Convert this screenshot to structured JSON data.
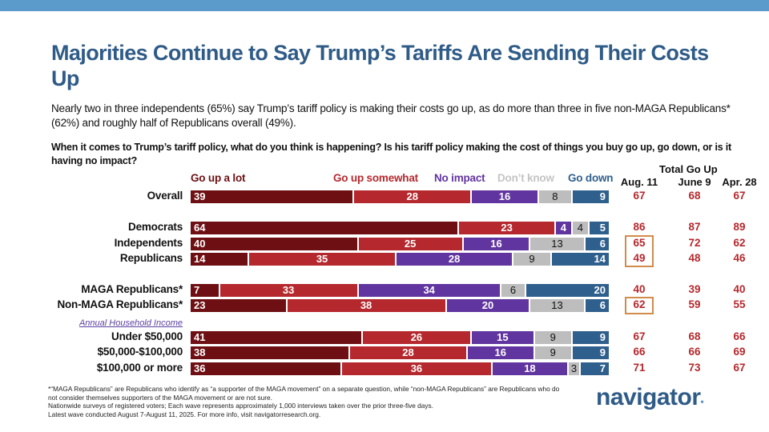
{
  "header": {
    "title": "Majorities Continue to Say Trump’s Tariffs Are Sending Their Costs Up",
    "subtitle": "Nearly two in three independents (65%) say Trump’s tariff policy is making their costs go up, as do more than three in five non-MAGA Republicans* (62%) and roughly half of Republicans overall (49%).",
    "question": "When it comes to Trump’s tariff policy, what do you think is happening? Is his tariff policy making the cost of things you buy go up, go down, or is it having no impact?"
  },
  "colors": {
    "go_up_a_lot": "#6e1013",
    "go_up_somewhat": "#b5292e",
    "no_impact": "#6135a0",
    "dont_know": "#bdbdbd",
    "go_down": "#2f5f8c",
    "title": "#2f5b87",
    "highlight_box": "#d18b4b",
    "topbar": "#5b9bcc"
  },
  "chart_data": {
    "type": "bar",
    "orientation": "horizontal-stacked",
    "title": "When it comes to Trump’s tariff policy, what do you think is happening?",
    "series_names": [
      "Go up a lot",
      "Go up somewhat",
      "No impact",
      "Don’t know",
      "Go down"
    ],
    "categories": [
      "Overall",
      "Democrats",
      "Independents",
      "Republicans",
      "MAGA Republicans*",
      "Non-MAGA Republicans*",
      "Under $50,000",
      "$50,000-$100,000",
      "$100,000 or more"
    ],
    "series": [
      {
        "name": "Go up a lot",
        "values": [
          39,
          64,
          40,
          14,
          7,
          23,
          41,
          38,
          36
        ]
      },
      {
        "name": "Go up somewhat",
        "values": [
          28,
          23,
          25,
          35,
          33,
          38,
          26,
          28,
          36
        ]
      },
      {
        "name": "No impact",
        "values": [
          16,
          4,
          16,
          28,
          34,
          20,
          15,
          16,
          18
        ]
      },
      {
        "name": "Don’t know",
        "values": [
          8,
          4,
          13,
          9,
          6,
          13,
          9,
          9,
          3
        ]
      },
      {
        "name": "Go down",
        "values": [
          9,
          5,
          6,
          14,
          20,
          6,
          9,
          9,
          7
        ]
      }
    ],
    "section_label": "Annual Household Income",
    "total_go_up": {
      "header": "Total Go Up",
      "columns": [
        "Aug. 11",
        "June 9",
        "Apr. 28"
      ],
      "values": [
        [
          67,
          68,
          67
        ],
        [
          86,
          87,
          89
        ],
        [
          65,
          72,
          62
        ],
        [
          49,
          48,
          46
        ],
        [
          40,
          39,
          40
        ],
        [
          62,
          59,
          55
        ],
        [
          67,
          68,
          66
        ],
        [
          66,
          66,
          69
        ],
        [
          71,
          73,
          67
        ]
      ],
      "highlighted": [
        "Independents Aug. 11",
        "Republicans Aug. 11",
        "Non-MAGA Republicans* Aug. 11"
      ]
    },
    "xlim": [
      0,
      100
    ],
    "grid": false,
    "legend": "top"
  },
  "footnote": {
    "line1": "*“MAGA Republicans” are Republicans who identify as “a supporter of the MAGA movement” on a separate question, while “non-MAGA Republicans” are Republicans who do not consider themselves supporters of the MAGA movement or are not sure.",
    "line2": "Nationwide surveys of registered voters; Each wave represents approximately 1,000 interviews taken over the prior three-five days.",
    "line3": "Latest wave conducted August 7-August 11, 2025. For more info, visit navigatorresearch.org."
  },
  "logo": {
    "text": "navigator",
    "dot": "•"
  }
}
